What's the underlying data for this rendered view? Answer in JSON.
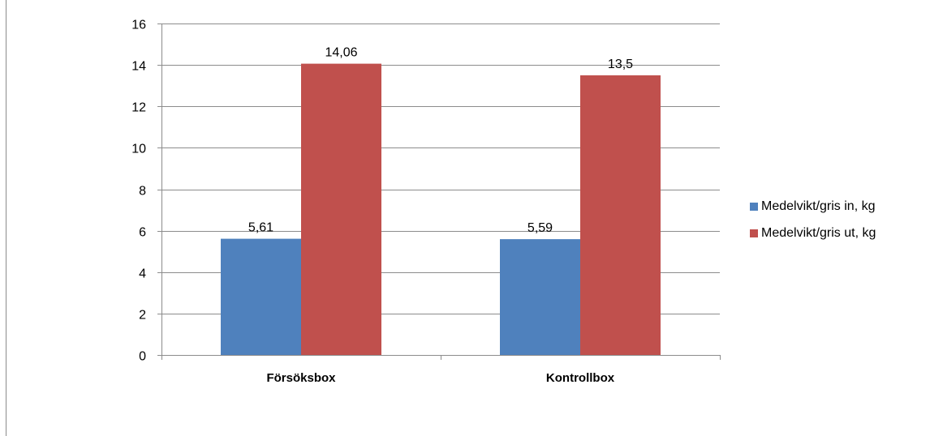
{
  "chart_data": {
    "type": "bar",
    "categories": [
      "Försöksbox",
      "Kontrollbox"
    ],
    "series": [
      {
        "name": "Medelvikt/gris in, kg",
        "values": [
          5.61,
          5.59
        ],
        "labels": [
          "5,61",
          "5,59"
        ],
        "color": "#4f81bd"
      },
      {
        "name": "Medelvikt/gris ut, kg",
        "values": [
          14.06,
          13.5
        ],
        "labels": [
          "14,06",
          "13,5"
        ],
        "color": "#c0504d"
      }
    ],
    "yticks": [
      "0",
      "2",
      "4",
      "6",
      "8",
      "10",
      "12",
      "14",
      "16"
    ],
    "ylim": [
      0,
      16
    ],
    "grid": true,
    "legend_position": "right"
  }
}
